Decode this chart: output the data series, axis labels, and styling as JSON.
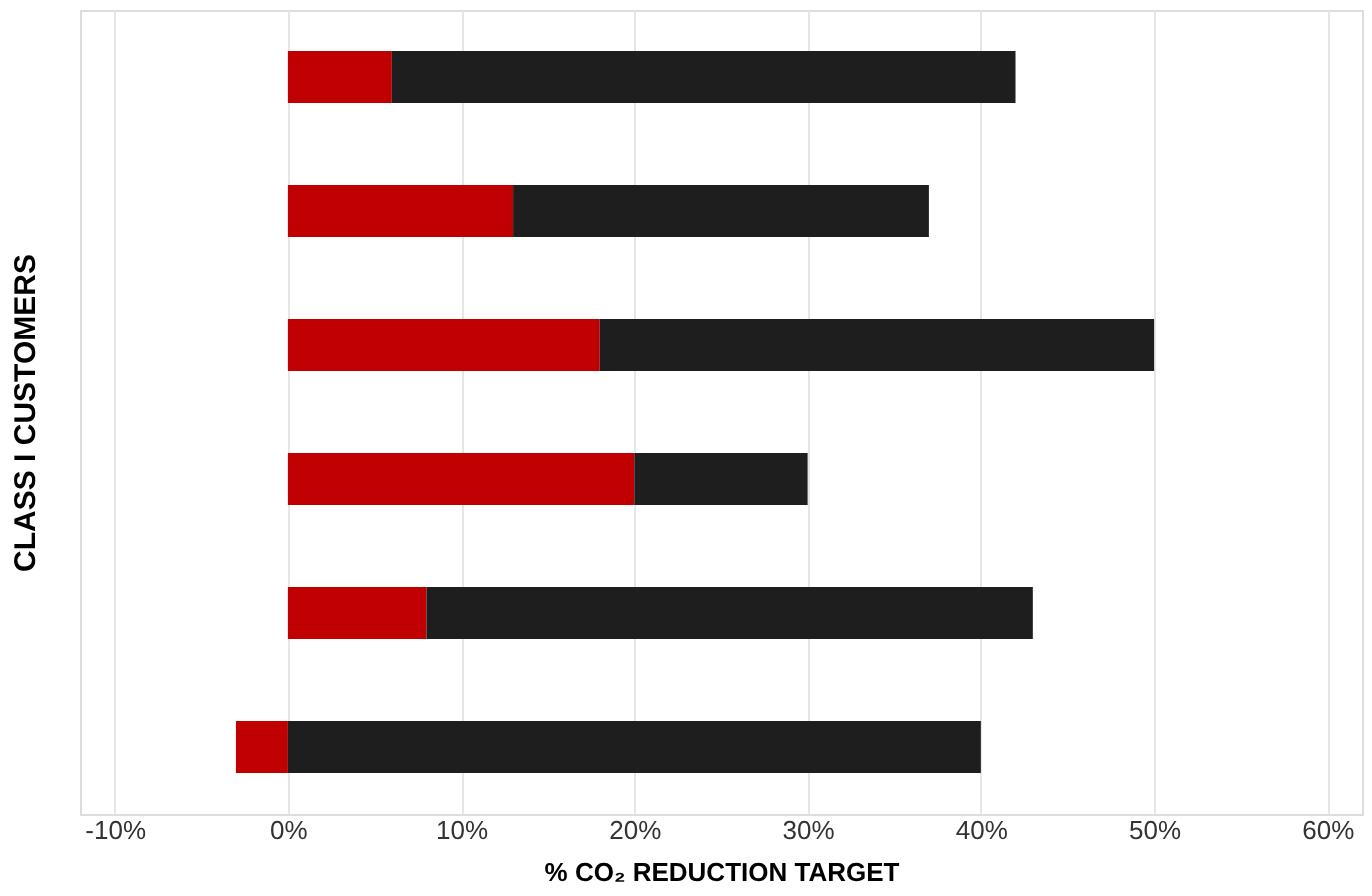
{
  "chart_data": {
    "type": "bar",
    "orientation": "horizontal",
    "stacked": true,
    "xlabel": "% CO₂ REDUCTION TARGET",
    "ylabel": "CLASS I CUSTOMERS",
    "categories": [
      null,
      null,
      null,
      null,
      null,
      null
    ],
    "series": [
      {
        "color": "#c00000",
        "values": [
          6,
          13,
          18,
          20,
          8,
          -3
        ]
      },
      {
        "color": "#1e1e1e",
        "values": [
          36,
          24,
          32,
          10,
          35,
          40
        ]
      }
    ],
    "xlim": [
      -12,
      62
    ],
    "xticks": [
      {
        "value": -10,
        "label": "-10%"
      },
      {
        "value": 0,
        "label": "0%"
      },
      {
        "value": 10,
        "label": "10%"
      },
      {
        "value": 20,
        "label": "20%"
      },
      {
        "value": 30,
        "label": "30%"
      },
      {
        "value": 40,
        "label": "40%"
      },
      {
        "value": 50,
        "label": "50%"
      },
      {
        "value": 60,
        "label": "60%"
      }
    ],
    "grid": "x",
    "tick_labels": "x"
  }
}
